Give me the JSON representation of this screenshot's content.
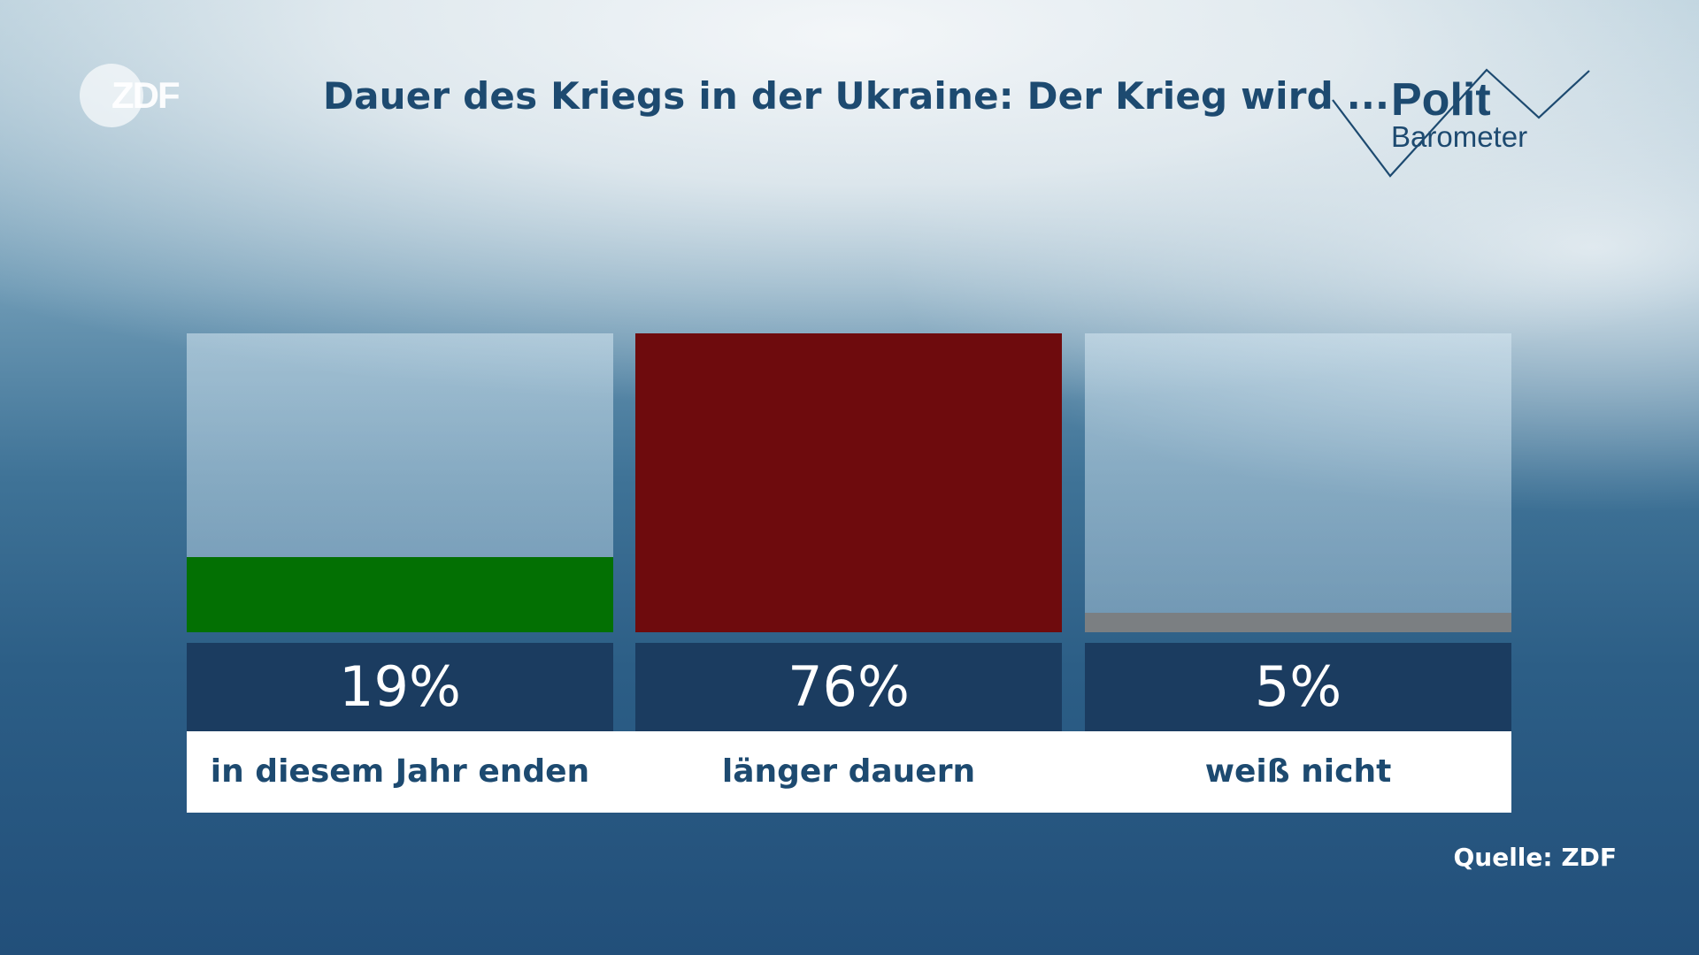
{
  "logo_left": {
    "text": "ZDF"
  },
  "logo_right": {
    "line1": "Polit",
    "line2": "Barometer"
  },
  "chart_data": {
    "type": "bar",
    "title": "Dauer des Kriegs in der Ukraine: Der Krieg wird ...",
    "categories": [
      "in diesem Jahr enden",
      "länger dauern",
      "weiß nicht"
    ],
    "values": [
      19,
      76,
      5
    ],
    "value_labels": [
      "19%",
      "76%",
      "5%"
    ],
    "colors": [
      "#037003",
      "#6e0b0d",
      "#7b7f82"
    ],
    "ylim": [
      0,
      76
    ],
    "unit": "%"
  },
  "source": "Quelle: ZDF"
}
